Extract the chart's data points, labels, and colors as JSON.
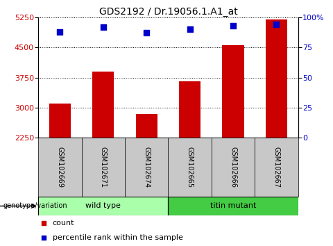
{
  "title": "GDS2192 / Dr.19056.1.A1_at",
  "samples": [
    "GSM102669",
    "GSM102671",
    "GSM102674",
    "GSM102665",
    "GSM102666",
    "GSM102667"
  ],
  "bar_values": [
    3100,
    3900,
    2850,
    3650,
    4550,
    5200
  ],
  "percentile_values": [
    88,
    92,
    87,
    90,
    93,
    94
  ],
  "ylim_left": [
    2250,
    5250
  ],
  "ylim_right": [
    0,
    100
  ],
  "yticks_left": [
    2250,
    3000,
    3750,
    4500,
    5250
  ],
  "yticks_right": [
    0,
    25,
    50,
    75,
    100
  ],
  "ytick_labels_right": [
    "0",
    "25",
    "50",
    "75",
    "100%"
  ],
  "bar_color": "#cc0000",
  "percentile_color": "#0000cc",
  "wild_type_color": "#aaffaa",
  "titin_mutant_color": "#44cc44",
  "groups": [
    {
      "label": "wild type",
      "indices": [
        0,
        1,
        2
      ],
      "color": "#aaffaa"
    },
    {
      "label": "titin mutant",
      "indices": [
        3,
        4,
        5
      ],
      "color": "#44cc44"
    }
  ],
  "xlabel_area_bg": "#c8c8c8",
  "bar_width": 0.5,
  "title_fontsize": 10,
  "tick_fontsize": 8,
  "legend_fontsize": 8,
  "sample_fontsize": 7,
  "group_fontsize": 8
}
